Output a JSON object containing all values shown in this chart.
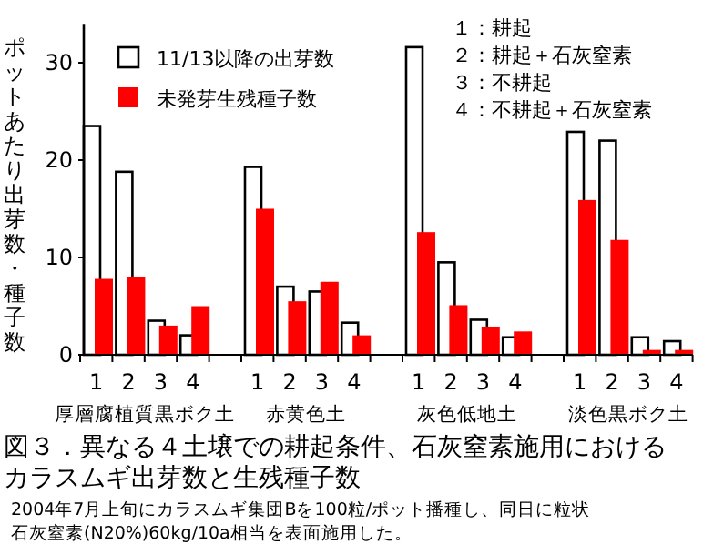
{
  "chart_data": {
    "type": "bar",
    "title": "図３．異なる４土壌での耕起条件、石灰窒素施用におけるカラスムギ出芽数と生残種子数",
    "ylabel": "ポットあたり出芽数・種子数",
    "categories": [
      "1",
      "2",
      "3",
      "4",
      null,
      "1",
      "2",
      "3",
      "4",
      null,
      "1",
      "2",
      "3",
      "4",
      null,
      "1",
      "2",
      "3",
      "4"
    ],
    "series": [
      {
        "name": "11/13以降の出芽数",
        "color": "#ffffff",
        "values": [
          23.5,
          18.8,
          3.5,
          2.0,
          null,
          19.3,
          7.0,
          6.5,
          3.3,
          null,
          31.6,
          9.5,
          3.6,
          1.8,
          null,
          22.9,
          22.0,
          1.8,
          1.4
        ]
      },
      {
        "name": "未発芽生残種子数",
        "color": "#ff0000",
        "values": [
          7.8,
          8.0,
          3.0,
          5.0,
          null,
          15.0,
          5.5,
          7.5,
          2.0,
          null,
          12.6,
          5.1,
          2.9,
          2.4,
          null,
          15.9,
          11.8,
          0.5,
          0.5
        ]
      }
    ],
    "ylim": [
      0,
      34
    ],
    "yticks": [
      0,
      10,
      20,
      30
    ],
    "grid": false,
    "legend": "top left",
    "annotations": [
      "厚層腐植質黒ボク土",
      "赤黄色土",
      "灰色低地土",
      "淡色黒ボク土",
      "１：耕起",
      "２：耕起＋石灰窒素",
      "３：不耕起",
      "４：不耕起＋石灰窒素",
      "2004年7月上旬にカラスムギ集団Bを100粒/ポット播種し、同日に粒状石灰窒素(N20%)60kg/10a相当を表面施用した。"
    ]
  }
}
